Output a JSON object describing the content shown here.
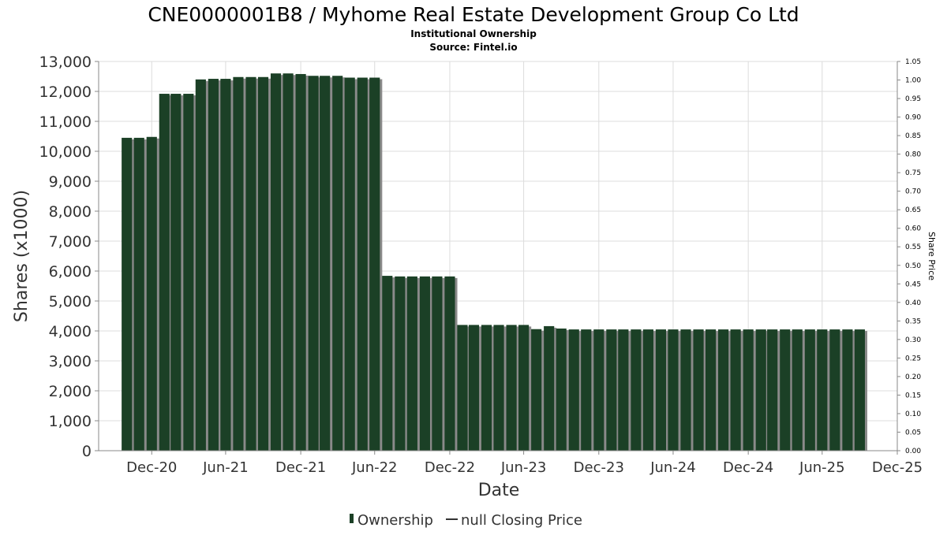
{
  "colors": {
    "bar_fill": "#1b4026",
    "bar_shadow": "#8a8a8a",
    "grid": "#dcdcdc",
    "axis": "#888888",
    "text_dark": "#333333"
  },
  "chart_data": {
    "type": "bar",
    "title": "CNE0000001B8 / Myhome Real Estate Development Group Co Ltd",
    "subtitle": "Institutional Ownership",
    "source": "Source: Fintel.io",
    "xlabel": "Date",
    "ylabel": "Shares (x1000)",
    "y2label": "Share Price",
    "ylim": [
      0,
      13000
    ],
    "y2lim": [
      0,
      1.05
    ],
    "yticks": [
      "0",
      "1,000",
      "2,000",
      "3,000",
      "4,000",
      "5,000",
      "6,000",
      "7,000",
      "8,000",
      "9,000",
      "10,000",
      "11,000",
      "12,000",
      "13,000"
    ],
    "y2ticks": [
      "0.00",
      "0.05",
      "0.10",
      "0.15",
      "0.20",
      "0.25",
      "0.30",
      "0.35",
      "0.40",
      "0.45",
      "0.50",
      "0.55",
      "0.60",
      "0.65",
      "0.70",
      "0.75",
      "0.80",
      "0.85",
      "0.90",
      "0.95",
      "1.00",
      "1.05"
    ],
    "xticks": [
      {
        "date": "2020-12-31",
        "label": "Dec-20"
      },
      {
        "date": "2021-06-30",
        "label": "Jun-21"
      },
      {
        "date": "2021-12-31",
        "label": "Dec-21"
      },
      {
        "date": "2022-06-30",
        "label": "Jun-22"
      },
      {
        "date": "2022-12-31",
        "label": "Dec-22"
      },
      {
        "date": "2023-06-30",
        "label": "Jun-23"
      },
      {
        "date": "2023-12-31",
        "label": "Dec-23"
      },
      {
        "date": "2024-06-30",
        "label": "Jun-24"
      },
      {
        "date": "2024-12-31",
        "label": "Dec-24"
      },
      {
        "date": "2025-06-30",
        "label": "Jun-25"
      },
      {
        "date": "2025-12-31",
        "label": "Dec-25"
      }
    ],
    "xlim": [
      "2020-08-23",
      "2025-12-31"
    ],
    "legend": {
      "placement": "bottom-center",
      "items": [
        {
          "label": "Ownership",
          "kind": "bar"
        },
        {
          "label": "null Closing Price",
          "kind": "line"
        }
      ]
    },
    "grid": true,
    "series": [
      {
        "name": "Ownership",
        "dates": [
          "2020-10-31",
          "2020-11-30",
          "2020-12-31",
          "2021-01-31",
          "2021-02-28",
          "2021-03-31",
          "2021-04-30",
          "2021-05-31",
          "2021-06-30",
          "2021-07-31",
          "2021-08-31",
          "2021-09-30",
          "2021-10-31",
          "2021-11-30",
          "2021-12-31",
          "2022-01-31",
          "2022-02-28",
          "2022-03-31",
          "2022-04-30",
          "2022-05-31",
          "2022-06-30",
          "2022-07-31",
          "2022-08-31",
          "2022-09-30",
          "2022-10-31",
          "2022-11-30",
          "2022-12-31",
          "2023-01-31",
          "2023-02-28",
          "2023-03-31",
          "2023-04-30",
          "2023-05-31",
          "2023-06-30",
          "2023-07-31",
          "2023-08-31",
          "2023-09-30",
          "2023-10-31",
          "2023-11-30",
          "2023-12-31",
          "2024-01-31",
          "2024-02-29",
          "2024-03-31",
          "2024-04-30",
          "2024-05-31",
          "2024-06-30",
          "2024-07-31",
          "2024-08-31",
          "2024-09-30",
          "2024-10-31",
          "2024-11-30",
          "2024-12-31",
          "2025-01-31",
          "2025-02-28",
          "2025-03-31",
          "2025-04-30",
          "2025-05-31",
          "2025-06-30",
          "2025-07-31",
          "2025-08-31",
          "2025-09-30"
        ],
        "values": [
          10450,
          10450,
          10480,
          11920,
          11920,
          11920,
          12400,
          12420,
          12420,
          12480,
          12480,
          12480,
          12600,
          12600,
          12580,
          12520,
          12520,
          12520,
          12460,
          12460,
          12460,
          5840,
          5820,
          5820,
          5820,
          5820,
          5820,
          4200,
          4200,
          4200,
          4200,
          4200,
          4200,
          4060,
          4160,
          4080,
          4050,
          4050,
          4050,
          4050,
          4050,
          4050,
          4050,
          4050,
          4050,
          4050,
          4050,
          4050,
          4050,
          4050,
          4050,
          4050,
          4050,
          4050,
          4050,
          4050,
          4050,
          4050,
          4050,
          4050
        ]
      }
    ]
  }
}
